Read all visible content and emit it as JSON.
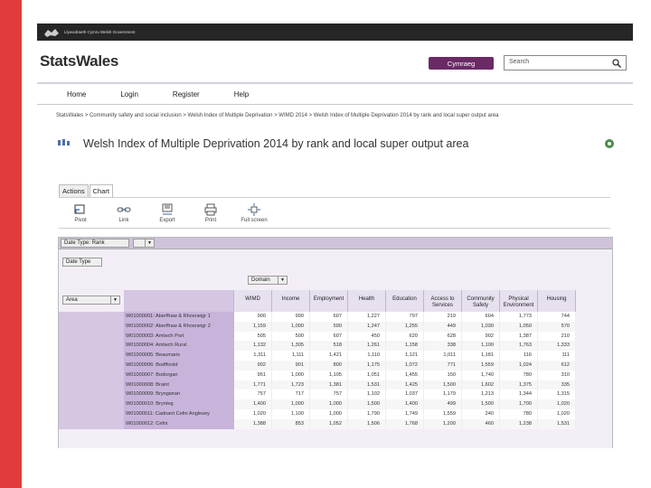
{
  "gov": {
    "text": "Llywodraeth Cymru Welsh Government"
  },
  "header": {
    "logo": "StatsWales",
    "cymraeg_label": "Cymraeg",
    "search_placeholder": "Search"
  },
  "nav": [
    {
      "label": "Home"
    },
    {
      "label": "Login"
    },
    {
      "label": "Register"
    },
    {
      "label": "Help"
    }
  ],
  "breadcrumb": "StatsWales > Community safety and social inclusion > Welsh Index of Multiple Deprivation > WIMD 2014 > Welsh Index of Multiple Deprivation 2014 by rank and local super output area",
  "title": "Welsh Index of Multiple Deprivation 2014 by rank and local super output area",
  "tabs": [
    {
      "label": "Actions"
    },
    {
      "label": "Chart"
    }
  ],
  "toolbar": [
    {
      "label": "Pivot",
      "icon": "pivot-icon"
    },
    {
      "label": "Link",
      "icon": "link-icon"
    },
    {
      "label": "Export",
      "icon": "export-icon"
    },
    {
      "label": "Print",
      "icon": "print-icon"
    },
    {
      "label": "Full screen",
      "icon": "fullscreen-icon"
    }
  ],
  "controls": {
    "date_type": "Date Type: Rank",
    "date_type_btn": "Date Type",
    "domain": "Domain",
    "area": "Area"
  },
  "columns": [
    {
      "label": "WIMD"
    },
    {
      "label": "Income"
    },
    {
      "label": "Employment"
    },
    {
      "label": "Health"
    },
    {
      "label": "Education"
    },
    {
      "label": "Access to Services"
    },
    {
      "label": "Community Safety"
    },
    {
      "label": "Physical Environment"
    },
    {
      "label": "Housing"
    }
  ],
  "rows": [
    {
      "code": "W01000001: Aberffraw & Rhosneigr 1",
      "values": [
        "900",
        "900",
        "607",
        "1,227",
        "797",
        "219",
        "604",
        "1,773",
        "744"
      ]
    },
    {
      "code": "W01000002: Aberffraw & Rhosneigr 2",
      "values": [
        "1,159",
        "1,000",
        "590",
        "1,247",
        "1,255",
        "449",
        "1,030",
        "1,050",
        "570"
      ]
    },
    {
      "code": "W01000003: Amlwch Port",
      "values": [
        "505",
        "500",
        "607",
        "450",
        "620",
        "628",
        "902",
        "1,387",
        "210"
      ]
    },
    {
      "code": "W01000004: Amlwch Rural",
      "values": [
        "1,132",
        "1,305",
        "518",
        "1,261",
        "1,158",
        "338",
        "1,100",
        "1,763",
        "1,333"
      ]
    },
    {
      "code": "W01000005: Beaumaris",
      "values": [
        "1,311",
        "1,111",
        "1,421",
        "1,110",
        "1,121",
        "1,011",
        "1,181",
        "116",
        "111"
      ]
    },
    {
      "code": "W01000006: Bodffordd",
      "values": [
        "902",
        "901",
        "800",
        "1,175",
        "1,072",
        "771",
        "1,559",
        "1,024",
        "612"
      ]
    },
    {
      "code": "W01000007: Bodorgan",
      "values": [
        "951",
        "1,000",
        "1,105",
        "1,051",
        "1,455",
        "150",
        "1,740",
        "780",
        "310"
      ]
    },
    {
      "code": "W01000008: Braint",
      "values": [
        "1,771",
        "1,723",
        "1,381",
        "1,531",
        "1,425",
        "1,500",
        "1,602",
        "1,375",
        "335"
      ]
    },
    {
      "code": "W01000009: Bryngwran",
      "values": [
        "757",
        "717",
        "757",
        "1,102",
        "1,037",
        "1,179",
        "1,213",
        "1,344",
        "1,315"
      ]
    },
    {
      "code": "W01000010: Brynteg",
      "values": [
        "1,400",
        "1,000",
        "1,000",
        "1,500",
        "1,400",
        "499",
        "1,500",
        "1,700",
        "1,020"
      ]
    },
    {
      "code": "W01000011: Cadnant Cefni Anglesey",
      "values": [
        "1,020",
        "1,100",
        "1,000",
        "1,790",
        "1,749",
        "1,559",
        "240",
        "780",
        "1,020"
      ]
    },
    {
      "code": "W01000012: Cefni",
      "values": [
        "1,388",
        "853",
        "1,052",
        "1,506",
        "1,768",
        "1,200",
        "460",
        "1,238",
        "1,531"
      ]
    }
  ]
}
